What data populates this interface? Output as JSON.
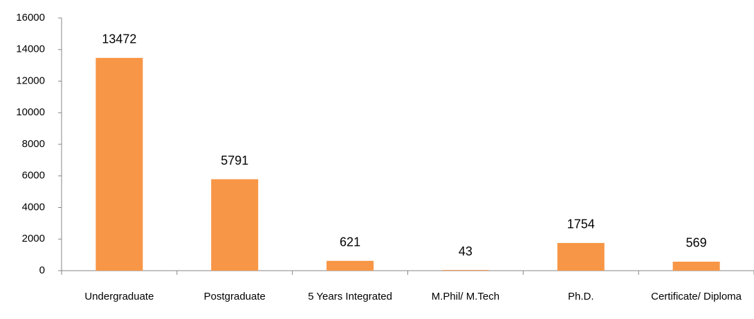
{
  "chart_data": {
    "type": "bar",
    "categories": [
      "Undergraduate",
      "Postgraduate",
      "5 Years Integrated",
      "M.Phil/ M.Tech",
      "Ph.D.",
      "Certificate/ Diploma"
    ],
    "values": [
      13472,
      5791,
      621,
      43,
      1754,
      569
    ],
    "color": "#f79646",
    "ylim": [
      0,
      16000
    ],
    "yticks": [
      0,
      2000,
      4000,
      6000,
      8000,
      10000,
      12000,
      14000,
      16000
    ],
    "grid": false
  }
}
